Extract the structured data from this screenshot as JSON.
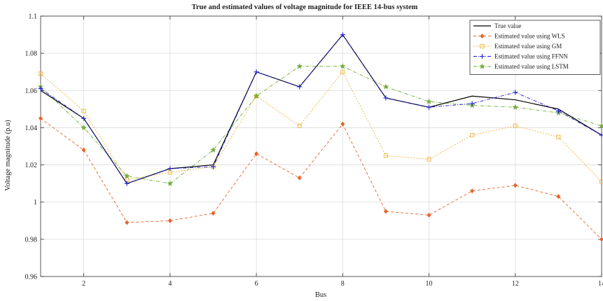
{
  "chart_data": {
    "type": "line",
    "title": "True and estimated values of voltage magnitude for IEEE 14-bus system",
    "xlabel": "Bus",
    "ylabel": "Voltage magnitude (p.u)",
    "xlim": [
      1,
      14
    ],
    "ylim": [
      0.96,
      1.1
    ],
    "xticks": [
      2,
      4,
      6,
      8,
      10,
      12,
      14
    ],
    "yticks": [
      0.96,
      0.98,
      1,
      1.02,
      1.04,
      1.06,
      1.08,
      1.1
    ],
    "xtick_labels": [
      "2",
      "4",
      "6",
      "8",
      "10",
      "12",
      "14"
    ],
    "ytick_labels": [
      "0.96",
      "0.98",
      "1",
      "1.02",
      "1.04",
      "1.06",
      "1.08",
      "1.1"
    ],
    "grid": true,
    "legend_position": "top-right",
    "x": [
      1,
      2,
      3,
      4,
      5,
      6,
      7,
      8,
      9,
      10,
      11,
      12,
      13,
      14
    ],
    "series": [
      {
        "name": "True value",
        "color": "#000000",
        "dash": "",
        "marker": "none",
        "values": [
          1.06,
          1.045,
          1.01,
          1.018,
          1.02,
          1.07,
          1.062,
          1.09,
          1.056,
          1.051,
          1.057,
          1.055,
          1.05,
          1.036
        ]
      },
      {
        "name": "Estimated value using WLS",
        "color": "#e8642c",
        "dash": "4 3",
        "marker": "diamond",
        "values": [
          1.045,
          1.028,
          0.989,
          0.99,
          0.994,
          1.026,
          1.013,
          1.042,
          0.995,
          0.993,
          1.006,
          1.009,
          1.003,
          0.98
        ]
      },
      {
        "name": "Estimated value using GM",
        "color": "#f0b43a",
        "dash": "2 2",
        "marker": "square",
        "values": [
          1.069,
          1.049,
          1.012,
          1.016,
          1.019,
          1.057,
          1.041,
          1.07,
          1.025,
          1.023,
          1.036,
          1.041,
          1.035,
          1.011
        ]
      },
      {
        "name": "Estimated value using FFNN",
        "color": "#1c1cd6",
        "dash": "5 2 1 2",
        "marker": "plus",
        "values": [
          1.061,
          1.045,
          1.01,
          1.018,
          1.019,
          1.07,
          1.062,
          1.09,
          1.056,
          1.051,
          1.053,
          1.059,
          1.049,
          1.036
        ]
      },
      {
        "name": "Estimated value using LSTM",
        "color": "#72ad3c",
        "dash": "5 2 1 2",
        "marker": "star",
        "values": [
          1.062,
          1.04,
          1.014,
          1.01,
          1.028,
          1.057,
          1.073,
          1.073,
          1.062,
          1.054,
          1.052,
          1.051,
          1.048,
          1.041
        ]
      }
    ]
  }
}
